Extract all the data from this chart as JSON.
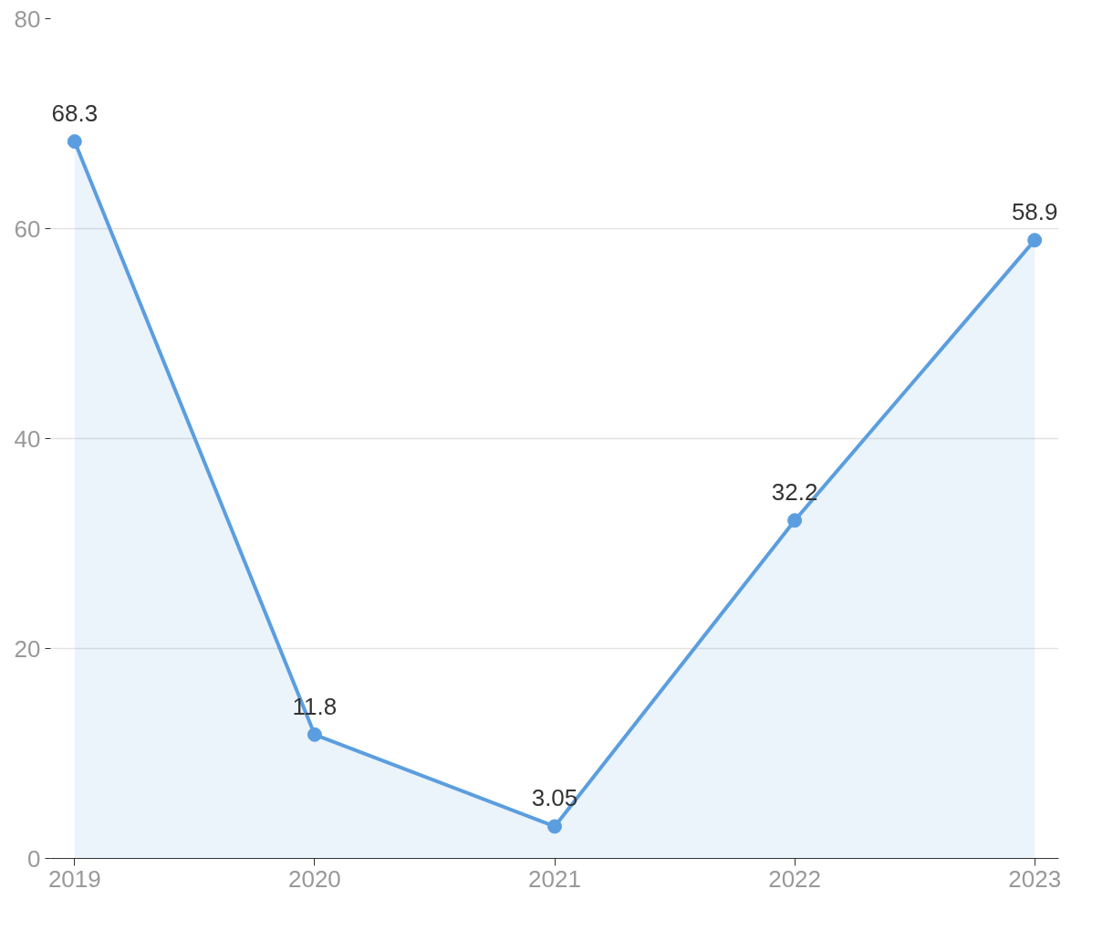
{
  "chart_data": {
    "type": "area",
    "categories": [
      "2019",
      "2020",
      "2021",
      "2022",
      "2023"
    ],
    "series": [
      {
        "color": "#5b9ee0",
        "values": [
          68.3,
          11.8,
          3.05,
          32.2,
          58.9
        ]
      }
    ],
    "data_labels": true,
    "marker": "circle",
    "ylim": [
      0,
      80
    ],
    "yticks": [
      0,
      20,
      40,
      60,
      80
    ],
    "grid": "y"
  }
}
